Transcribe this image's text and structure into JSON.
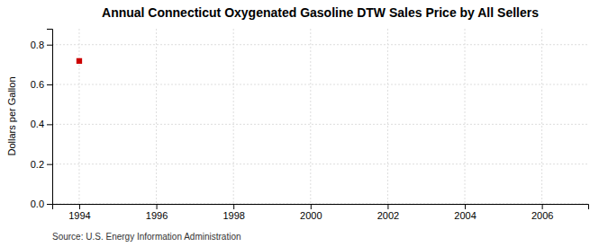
{
  "chart_data": {
    "type": "scatter",
    "title": "Annual Connecticut Oxygenated Gasoline DTW Sales Price by All Sellers",
    "ylabel": "Dollars per Gallon",
    "source": "Source: U.S. Energy Information Administration",
    "x": [
      1994
    ],
    "values": [
      0.718
    ],
    "color": "#cc0000",
    "marker": "square",
    "xlim": [
      1993.3,
      2007.2
    ],
    "ylim": [
      0.0,
      0.88
    ],
    "xticks": [
      1994,
      1996,
      1998,
      2000,
      2002,
      2004,
      2006
    ],
    "yticks": [
      {
        "value": 0.0,
        "label": "0.0"
      },
      0.2,
      0.4,
      0.6,
      0.8
    ],
    "grid": true
  }
}
